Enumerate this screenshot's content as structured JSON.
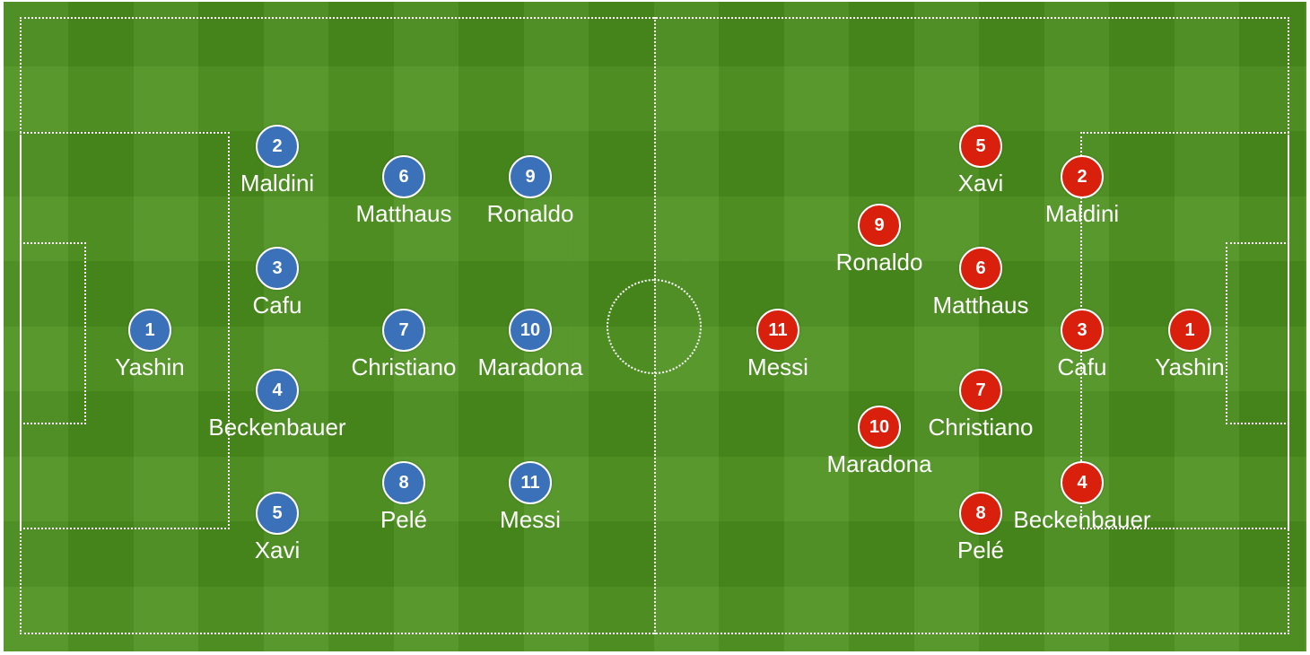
{
  "colors": {
    "pitch": "#4a8f1c",
    "lines": "#ffffff",
    "home": "#3a71b8",
    "away": "#d8200c"
  },
  "home_team": {
    "color": "#3a71b8",
    "players": [
      {
        "number": "1",
        "name": "Yashin"
      },
      {
        "number": "2",
        "name": "Maldini"
      },
      {
        "number": "3",
        "name": "Cafu"
      },
      {
        "number": "4",
        "name": "Beckenbauer"
      },
      {
        "number": "5",
        "name": "Xavi"
      },
      {
        "number": "6",
        "name": "Matthaus"
      },
      {
        "number": "7",
        "name": "Christiano"
      },
      {
        "number": "8",
        "name": "Pelé"
      },
      {
        "number": "9",
        "name": "Ronaldo"
      },
      {
        "number": "10",
        "name": "Maradona"
      },
      {
        "number": "11",
        "name": "Messi"
      }
    ]
  },
  "away_team": {
    "color": "#d8200c",
    "players": [
      {
        "number": "1",
        "name": "Yashin"
      },
      {
        "number": "2",
        "name": "Maldini"
      },
      {
        "number": "3",
        "name": "Cafu"
      },
      {
        "number": "4",
        "name": "Beckenbauer"
      },
      {
        "number": "5",
        "name": "Xavi"
      },
      {
        "number": "6",
        "name": "Matthaus"
      },
      {
        "number": "7",
        "name": "Christiano"
      },
      {
        "number": "8",
        "name": "Pelé"
      },
      {
        "number": "9",
        "name": "Ronaldo"
      },
      {
        "number": "10",
        "name": "Maradona"
      },
      {
        "number": "11",
        "name": "Messi"
      }
    ]
  }
}
